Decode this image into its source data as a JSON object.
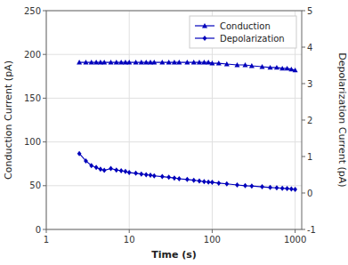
{
  "chart_data": {
    "type": "line",
    "xlabel": "Time (s)",
    "ylabel": "Conduction Current (pA)",
    "y2label": "Depolarization Current (pA)",
    "log": "x",
    "xlim": [
      1,
      1200
    ],
    "xticks": [
      1,
      10,
      100,
      1000
    ],
    "ylim": [
      0,
      250
    ],
    "yticks": [
      0,
      50,
      100,
      150,
      200,
      250
    ],
    "y2lim": [
      -1,
      5
    ],
    "y2ticks": [
      -1,
      0,
      1,
      2,
      3,
      4,
      5
    ],
    "grid": true,
    "legend": "upper right",
    "x": [
      2.5,
      3.0,
      3.5,
      4.0,
      4.5,
      5.0,
      6.0,
      7.0,
      8.0,
      9.0,
      10,
      12,
      14,
      16,
      18,
      20,
      25,
      30,
      35,
      40,
      50,
      60,
      70,
      80,
      90,
      100,
      120,
      150,
      200,
      250,
      300,
      400,
      500,
      600,
      700,
      800,
      900,
      1000
    ],
    "series": [
      {
        "name": "Conduction",
        "color": "#0000bb",
        "marker": "triangle",
        "values": [
          191,
          191,
          191,
          191,
          191,
          191,
          191,
          191,
          191,
          191,
          191,
          191,
          191,
          191,
          191,
          191,
          191,
          191,
          191,
          191,
          191,
          191,
          191,
          191,
          191,
          190,
          190,
          189,
          188,
          188,
          187,
          186,
          185,
          185,
          184,
          184,
          183,
          182
        ]
      },
      {
        "name": "Depolarization",
        "color": "#0000bb",
        "marker": "diamond",
        "axis": "y2",
        "values": [
          1.08,
          0.88,
          0.75,
          0.7,
          0.65,
          0.62,
          0.67,
          0.63,
          0.61,
          0.59,
          0.56,
          0.54,
          0.52,
          0.5,
          0.49,
          0.47,
          0.45,
          0.43,
          0.41,
          0.39,
          0.37,
          0.35,
          0.33,
          0.31,
          0.3,
          0.29,
          0.27,
          0.25,
          0.22,
          0.2,
          0.19,
          0.17,
          0.15,
          0.14,
          0.13,
          0.12,
          0.11,
          0.1
        ]
      }
    ]
  }
}
